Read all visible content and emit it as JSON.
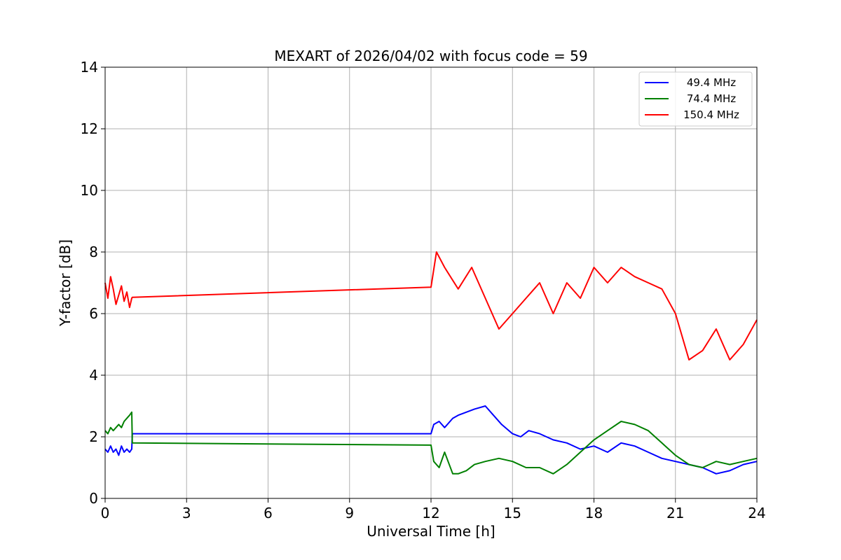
{
  "chart_data": {
    "type": "line",
    "title": "MEXART of 2026/04/02 with focus code = 59",
    "xlabel": "Universal Time [h]",
    "ylabel": "Y-factor [dB]",
    "xlim": [
      0,
      24
    ],
    "ylim": [
      0,
      14
    ],
    "xticks": [
      0,
      3,
      6,
      9,
      12,
      15,
      18,
      21,
      24
    ],
    "yticks": [
      0,
      2,
      4,
      6,
      8,
      10,
      12,
      14
    ],
    "grid": true,
    "legend_position": "top-right",
    "series": [
      {
        "name": "49.4 MHz",
        "color": "#0000ff",
        "points": [
          [
            0.0,
            1.6
          ],
          [
            0.1,
            1.5
          ],
          [
            0.2,
            1.7
          ],
          [
            0.3,
            1.5
          ],
          [
            0.4,
            1.6
          ],
          [
            0.5,
            1.4
          ],
          [
            0.6,
            1.7
          ],
          [
            0.7,
            1.5
          ],
          [
            0.8,
            1.6
          ],
          [
            0.9,
            1.5
          ],
          [
            0.98,
            1.6
          ],
          [
            1.0,
            2.1
          ],
          [
            12.0,
            2.1
          ],
          [
            12.1,
            2.4
          ],
          [
            12.3,
            2.5
          ],
          [
            12.5,
            2.3
          ],
          [
            12.8,
            2.6
          ],
          [
            13.0,
            2.7
          ],
          [
            13.3,
            2.8
          ],
          [
            13.6,
            2.9
          ],
          [
            14.0,
            3.0
          ],
          [
            14.3,
            2.7
          ],
          [
            14.6,
            2.4
          ],
          [
            15.0,
            2.1
          ],
          [
            15.3,
            2.0
          ],
          [
            15.6,
            2.2
          ],
          [
            16.0,
            2.1
          ],
          [
            16.5,
            1.9
          ],
          [
            17.0,
            1.8
          ],
          [
            17.5,
            1.6
          ],
          [
            18.0,
            1.7
          ],
          [
            18.5,
            1.5
          ],
          [
            19.0,
            1.8
          ],
          [
            19.5,
            1.7
          ],
          [
            20.0,
            1.5
          ],
          [
            20.5,
            1.3
          ],
          [
            21.0,
            1.2
          ],
          [
            21.5,
            1.1
          ],
          [
            22.0,
            1.0
          ],
          [
            22.5,
            0.8
          ],
          [
            23.0,
            0.9
          ],
          [
            23.5,
            1.1
          ],
          [
            24.0,
            1.2
          ]
        ]
      },
      {
        "name": "74.4 MHz",
        "color": "#008000",
        "points": [
          [
            0.0,
            2.2
          ],
          [
            0.1,
            2.1
          ],
          [
            0.2,
            2.3
          ],
          [
            0.3,
            2.2
          ],
          [
            0.4,
            2.3
          ],
          [
            0.5,
            2.4
          ],
          [
            0.6,
            2.3
          ],
          [
            0.7,
            2.5
          ],
          [
            0.8,
            2.6
          ],
          [
            0.9,
            2.7
          ],
          [
            0.98,
            2.8
          ],
          [
            1.0,
            1.8
          ],
          [
            12.0,
            1.73
          ],
          [
            12.1,
            1.2
          ],
          [
            12.3,
            1.0
          ],
          [
            12.5,
            1.5
          ],
          [
            12.8,
            0.8
          ],
          [
            13.0,
            0.8
          ],
          [
            13.3,
            0.9
          ],
          [
            13.6,
            1.1
          ],
          [
            14.0,
            1.2
          ],
          [
            14.5,
            1.3
          ],
          [
            15.0,
            1.2
          ],
          [
            15.5,
            1.0
          ],
          [
            16.0,
            1.0
          ],
          [
            16.5,
            0.8
          ],
          [
            17.0,
            1.1
          ],
          [
            17.5,
            1.5
          ],
          [
            18.0,
            1.9
          ],
          [
            18.5,
            2.2
          ],
          [
            19.0,
            2.5
          ],
          [
            19.5,
            2.4
          ],
          [
            20.0,
            2.2
          ],
          [
            20.5,
            1.8
          ],
          [
            21.0,
            1.4
          ],
          [
            21.5,
            1.1
          ],
          [
            22.0,
            1.0
          ],
          [
            22.5,
            1.2
          ],
          [
            23.0,
            1.1
          ],
          [
            23.5,
            1.2
          ],
          [
            24.0,
            1.3
          ]
        ]
      },
      {
        "name": "150.4 MHz",
        "color": "#ff0000",
        "points": [
          [
            0.0,
            7.0
          ],
          [
            0.1,
            6.5
          ],
          [
            0.2,
            7.2
          ],
          [
            0.3,
            6.8
          ],
          [
            0.4,
            6.3
          ],
          [
            0.5,
            6.6
          ],
          [
            0.6,
            6.9
          ],
          [
            0.7,
            6.4
          ],
          [
            0.8,
            6.7
          ],
          [
            0.9,
            6.2
          ],
          [
            0.98,
            6.5
          ],
          [
            1.0,
            6.53
          ],
          [
            12.0,
            6.86
          ],
          [
            12.2,
            8.0
          ],
          [
            12.5,
            7.5
          ],
          [
            13.0,
            6.8
          ],
          [
            13.5,
            7.5
          ],
          [
            14.0,
            6.5
          ],
          [
            14.5,
            5.5
          ],
          [
            15.0,
            6.0
          ],
          [
            15.5,
            6.5
          ],
          [
            16.0,
            7.0
          ],
          [
            16.5,
            6.0
          ],
          [
            17.0,
            7.0
          ],
          [
            17.5,
            6.5
          ],
          [
            18.0,
            7.5
          ],
          [
            18.5,
            7.0
          ],
          [
            19.0,
            7.5
          ],
          [
            19.5,
            7.2
          ],
          [
            20.0,
            7.0
          ],
          [
            20.5,
            6.8
          ],
          [
            21.0,
            6.0
          ],
          [
            21.5,
            4.5
          ],
          [
            22.0,
            4.8
          ],
          [
            22.5,
            5.5
          ],
          [
            23.0,
            4.5
          ],
          [
            23.5,
            5.0
          ],
          [
            24.0,
            5.8
          ]
        ]
      }
    ]
  }
}
